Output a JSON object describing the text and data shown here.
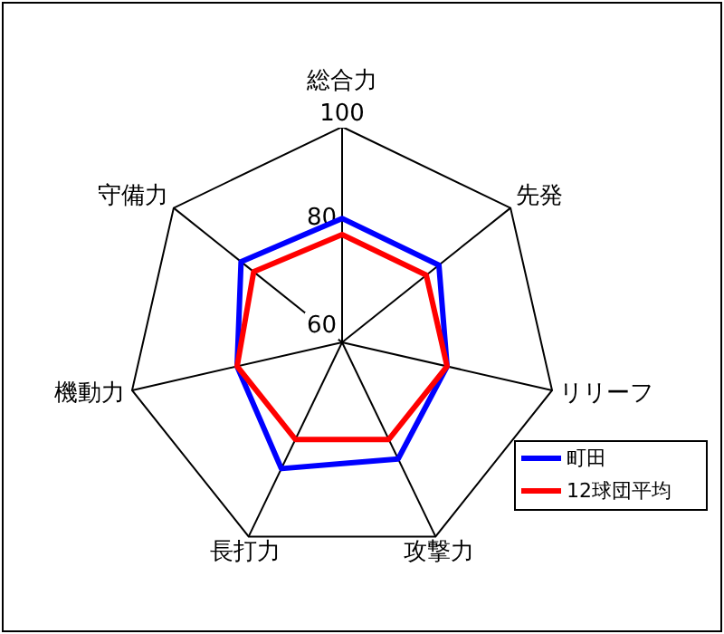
{
  "chart_data": {
    "type": "radar",
    "categories": [
      "総合力",
      "先発",
      "リリーフ",
      "攻撃力",
      "長打力",
      "機動力",
      "守備力"
    ],
    "series": [
      {
        "name": "町田",
        "color": "#0000ff",
        "values": [
          83,
          83,
          80,
          84,
          86,
          80,
          84
        ]
      },
      {
        "name": "12球団平均",
        "color": "#ff0000",
        "values": [
          80,
          80,
          80,
          80,
          80,
          80,
          81
        ]
      }
    ],
    "ylim": [
      60,
      100
    ],
    "yticks": [
      60,
      80,
      100
    ],
    "grid": true,
    "legend": "bottom right"
  }
}
